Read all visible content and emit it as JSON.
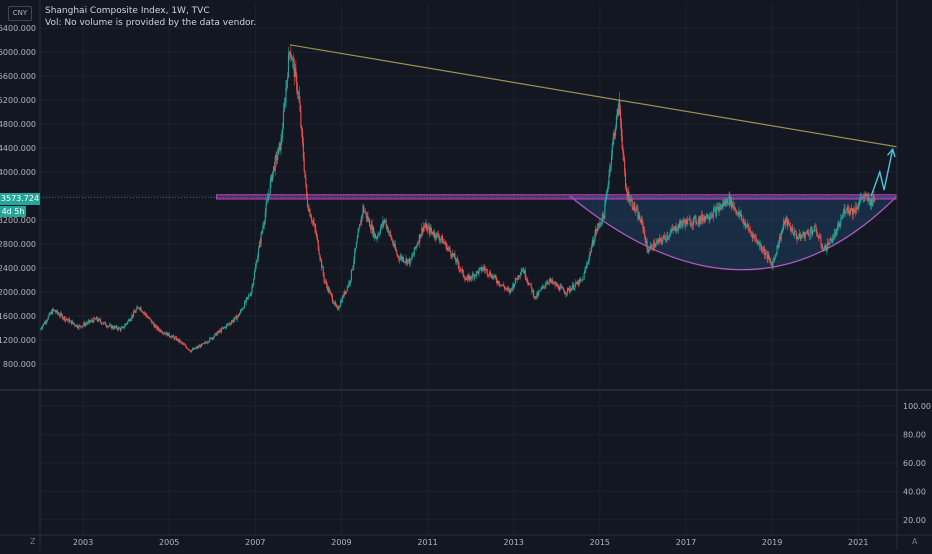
{
  "header": {
    "currency": "CNY",
    "title": "Shanghai Composite Index, 1W, TVC",
    "vol_note": "Vol: No volume is provided by the data vendor."
  },
  "last_price": {
    "label": "3573.724",
    "value": 3573.724,
    "countdown": "4d 5h"
  },
  "corner_left": "Z",
  "corner_right": "A",
  "colors": {
    "background": "#131722",
    "up": "#26a69a",
    "down": "#ef5350",
    "trendline": "#9a9150",
    "resistance": "#c046c8",
    "cup_fill": "#1e4a6e",
    "cup_stroke": "#b459c6",
    "arrow": "#4fc3d9",
    "grid": "#1e222d",
    "axis_text": "#b2b5be"
  },
  "chart_data": [
    {
      "type": "candlestick",
      "title": "Shanghai Composite Index, 1W, TVC",
      "xlim": [
        2002.0,
        2021.9
      ],
      "ylim": [
        400,
        6800
      ],
      "y_ticks": [
        "6400.000",
        "6000.000",
        "5600.000",
        "5200.000",
        "4800.000",
        "4400.000",
        "4000.000",
        "3600.000",
        "3200.000",
        "2800.000",
        "2400.000",
        "2000.000",
        "1600.000",
        "1200.000",
        "800.000"
      ],
      "y_tick_values": [
        6400,
        6000,
        5600,
        5200,
        4800,
        4400,
        4000,
        3600,
        3200,
        2800,
        2400,
        2000,
        1600,
        1200,
        800
      ],
      "x_ticks": [
        "2003",
        "2005",
        "2007",
        "2009",
        "2011",
        "2013",
        "2015",
        "2017",
        "2019",
        "2021"
      ],
      "x_tick_values": [
        2003,
        2005,
        2007,
        2009,
        2011,
        2013,
        2015,
        2017,
        2019,
        2021
      ],
      "grid": true,
      "price_path": [
        [
          2002.0,
          1380
        ],
        [
          2002.3,
          1700
        ],
        [
          2002.6,
          1550
        ],
        [
          2002.9,
          1420
        ],
        [
          2003.3,
          1550
        ],
        [
          2003.6,
          1430
        ],
        [
          2003.9,
          1380
        ],
        [
          2004.3,
          1760
        ],
        [
          2004.7,
          1400
        ],
        [
          2005.2,
          1200
        ],
        [
          2005.5,
          1020
        ],
        [
          2005.8,
          1130
        ],
        [
          2006.3,
          1420
        ],
        [
          2006.6,
          1600
        ],
        [
          2006.9,
          2000
        ],
        [
          2007.1,
          2800
        ],
        [
          2007.4,
          4000
        ],
        [
          2007.6,
          4500
        ],
        [
          2007.8,
          6100
        ],
        [
          2008.0,
          5300
        ],
        [
          2008.2,
          3500
        ],
        [
          2008.4,
          3000
        ],
        [
          2008.6,
          2200
        ],
        [
          2008.9,
          1700
        ],
        [
          2009.2,
          2200
        ],
        [
          2009.5,
          3400
        ],
        [
          2009.8,
          2900
        ],
        [
          2010.0,
          3200
        ],
        [
          2010.3,
          2600
        ],
        [
          2010.6,
          2500
        ],
        [
          2010.9,
          3100
        ],
        [
          2011.3,
          2900
        ],
        [
          2011.6,
          2600
        ],
        [
          2011.9,
          2200
        ],
        [
          2012.3,
          2400
        ],
        [
          2012.9,
          2000
        ],
        [
          2013.2,
          2400
        ],
        [
          2013.5,
          1900
        ],
        [
          2013.8,
          2200
        ],
        [
          2014.2,
          2000
        ],
        [
          2014.6,
          2200
        ],
        [
          2014.9,
          3000
        ],
        [
          2015.1,
          3300
        ],
        [
          2015.3,
          4500
        ],
        [
          2015.45,
          5150
        ],
        [
          2015.6,
          3700
        ],
        [
          2015.8,
          3400
        ],
        [
          2016.0,
          3100
        ],
        [
          2016.1,
          2700
        ],
        [
          2016.5,
          2900
        ],
        [
          2016.9,
          3150
        ],
        [
          2017.3,
          3200
        ],
        [
          2017.7,
          3350
        ],
        [
          2018.0,
          3550
        ],
        [
          2018.4,
          3100
        ],
        [
          2018.8,
          2700
        ],
        [
          2019.0,
          2450
        ],
        [
          2019.3,
          3200
        ],
        [
          2019.6,
          2900
        ],
        [
          2020.0,
          3050
        ],
        [
          2020.2,
          2700
        ],
        [
          2020.5,
          3000
        ],
        [
          2020.7,
          3400
        ],
        [
          2020.9,
          3350
        ],
        [
          2021.1,
          3600
        ],
        [
          2021.3,
          3500
        ],
        [
          2021.4,
          3573
        ]
      ],
      "annotations": {
        "trendline": {
          "start": [
            2007.8,
            6120
          ],
          "end": [
            2021.9,
            4420
          ]
        },
        "resistance_zone": {
          "x_start": 2006.1,
          "x_end": 2021.9,
          "y_low": 3550,
          "y_high": 3620
        },
        "cup_arc": {
          "x_start": 2014.3,
          "x_end": 2021.9,
          "y_top": 3600,
          "y_bottom": 2370,
          "bottom_x": 2018.5
        },
        "projection_arrow": [
          [
            2021.3,
            3600
          ],
          [
            2021.5,
            4000
          ],
          [
            2021.6,
            3700
          ],
          [
            2021.8,
            4380
          ]
        ]
      }
    },
    {
      "type": "line",
      "title": "",
      "ylim": [
        10,
        110
      ],
      "y_ticks": [
        "100.00",
        "80.00",
        "60.00",
        "40.00",
        "20.00"
      ],
      "y_tick_values": [
        100,
        80,
        60,
        40,
        20
      ],
      "series": []
    }
  ]
}
